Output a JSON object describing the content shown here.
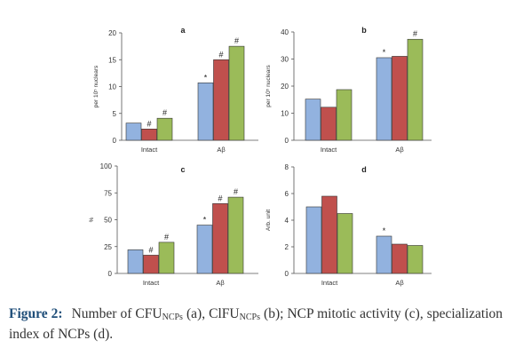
{
  "chart_data": [
    {
      "type": "bar",
      "panel_letter": "a",
      "categories": [
        "Intact",
        "Aβ"
      ],
      "ylabel": "per 10⁵ nuclears",
      "ylim": [
        0,
        20
      ],
      "yticks": [
        0,
        5,
        10,
        15,
        20
      ],
      "colors": [
        "#92b2df",
        "#c0504d",
        "#9bbb59"
      ],
      "grid": false,
      "series": [
        {
          "values": [
            3.2,
            10.7
          ],
          "marks": [
            "",
            "*"
          ]
        },
        {
          "values": [
            2.1,
            15.0
          ],
          "marks": [
            "#",
            "#"
          ]
        },
        {
          "values": [
            4.1,
            17.5
          ],
          "marks": [
            "#",
            "#"
          ]
        }
      ]
    },
    {
      "type": "bar",
      "panel_letter": "b",
      "categories": [
        "Intact",
        "Aβ"
      ],
      "ylabel": "per 10⁵ nuclears",
      "ylim": [
        0,
        40
      ],
      "yticks": [
        0,
        10,
        20,
        30,
        40
      ],
      "colors": [
        "#92b2df",
        "#c0504d",
        "#9bbb59"
      ],
      "grid": false,
      "series": [
        {
          "values": [
            15.2,
            30.5
          ],
          "marks": [
            "",
            "*"
          ]
        },
        {
          "values": [
            12.2,
            31.0
          ],
          "marks": [
            "",
            ""
          ]
        },
        {
          "values": [
            18.7,
            37.3
          ],
          "marks": [
            "",
            "#"
          ]
        }
      ]
    },
    {
      "type": "bar",
      "panel_letter": "c",
      "categories": [
        "Intact",
        "Aβ"
      ],
      "ylabel": "%",
      "ylim": [
        0,
        100
      ],
      "yticks": [
        0,
        25,
        50,
        75,
        100
      ],
      "colors": [
        "#92b2df",
        "#c0504d",
        "#9bbb59"
      ],
      "grid": false,
      "series": [
        {
          "values": [
            22,
            45
          ],
          "marks": [
            "",
            "*"
          ]
        },
        {
          "values": [
            17,
            65
          ],
          "marks": [
            "#",
            "#"
          ]
        },
        {
          "values": [
            29,
            71
          ],
          "marks": [
            "#",
            "#"
          ]
        }
      ]
    },
    {
      "type": "bar",
      "panel_letter": "d",
      "categories": [
        "Intact",
        "Aβ"
      ],
      "ylabel": "Arb. unit",
      "ylim": [
        0,
        8
      ],
      "yticks": [
        0,
        2,
        4,
        6,
        8
      ],
      "colors": [
        "#92b2df",
        "#c0504d",
        "#9bbb59"
      ],
      "grid": false,
      "series": [
        {
          "values": [
            5.0,
            2.8
          ],
          "marks": [
            "",
            "*"
          ]
        },
        {
          "values": [
            5.8,
            2.2
          ],
          "marks": [
            "",
            ""
          ]
        },
        {
          "values": [
            4.5,
            2.1
          ],
          "marks": [
            "",
            ""
          ]
        }
      ]
    }
  ],
  "caption": {
    "label": "Figure 2:",
    "text_1": "Number of CFU",
    "sub_1": "NCPs",
    "text_2": " (a), ClFU",
    "sub_2": "NCPs",
    "text_3": " (b); NCP mitotic activity (c), specialization index of NCPs (d)."
  }
}
